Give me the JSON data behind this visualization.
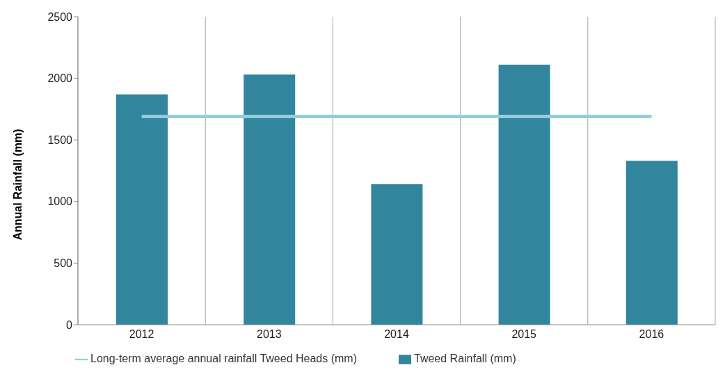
{
  "chart_data": {
    "type": "bar",
    "ylabel": "Annual Rainfall (mm)",
    "categories": [
      "2012",
      "2013",
      "2014",
      "2015",
      "2016"
    ],
    "series": [
      {
        "name": "Tweed Rainfall (mm)",
        "color": "#31859c",
        "values": [
          1870,
          2030,
          1140,
          2110,
          1330
        ]
      },
      {
        "name": "Long-term average annual rainfall Tweed Heads (mm)",
        "type": "line",
        "color": "#93cddd",
        "values": [
          1690,
          1690,
          1690,
          1690,
          1690
        ]
      }
    ],
    "ylim": [
      0,
      2500
    ],
    "yticks": [
      0,
      500,
      1000,
      1500,
      2000,
      2500
    ],
    "grid": "x",
    "legend": "bottom"
  }
}
